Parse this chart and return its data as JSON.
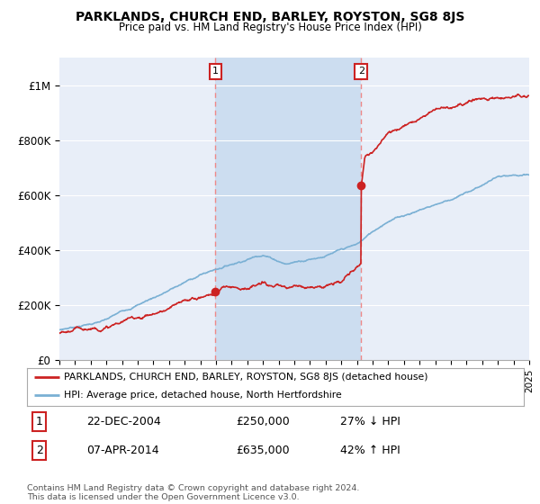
{
  "title": "PARKLANDS, CHURCH END, BARLEY, ROYSTON, SG8 8JS",
  "subtitle": "Price paid vs. HM Land Registry's House Price Index (HPI)",
  "hpi_color": "#7ab0d4",
  "price_color": "#cc2222",
  "vline_color": "#ee8888",
  "background_color": "#ffffff",
  "plot_bg_color": "#e8eef8",
  "shade_color": "#ccddf0",
  "grid_color": "#ffffff",
  "ylim": [
    0,
    1100000
  ],
  "yticks": [
    0,
    200000,
    400000,
    600000,
    800000,
    1000000
  ],
  "ytick_labels": [
    "£0",
    "£200K",
    "£400K",
    "£600K",
    "£800K",
    "£1M"
  ],
  "sale1_year": 2004.97,
  "sale1_price": 250000,
  "sale2_year": 2014.27,
  "sale2_price": 635000,
  "legend_entry1": "PARKLANDS, CHURCH END, BARLEY, ROYSTON, SG8 8JS (detached house)",
  "legend_entry2": "HPI: Average price, detached house, North Hertfordshire",
  "table_row1": [
    "1",
    "22-DEC-2004",
    "£250,000",
    "27% ↓ HPI"
  ],
  "table_row2": [
    "2",
    "07-APR-2014",
    "£635,000",
    "42% ↑ HPI"
  ],
  "footer": "Contains HM Land Registry data © Crown copyright and database right 2024.\nThis data is licensed under the Open Government Licence v3.0.",
  "xmin": 1995,
  "xmax": 2025
}
